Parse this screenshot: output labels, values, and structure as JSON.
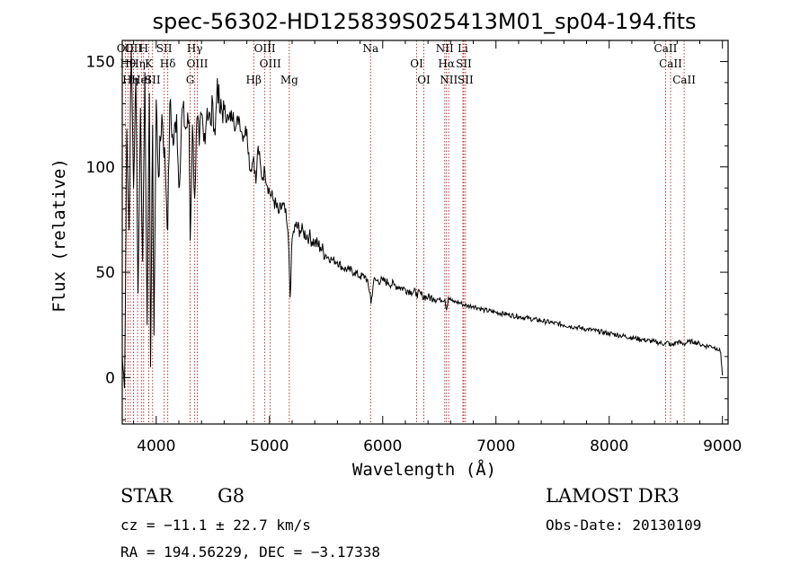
{
  "chart_data": {
    "type": "line",
    "title": "spec-56302-HD125839S025413M01_sp04-194.fits",
    "xlabel": "Wavelength (Å)",
    "ylabel": "Flux (relative)",
    "xlim": [
      3700,
      9050
    ],
    "ylim": [
      -22,
      160
    ],
    "xticks": [
      4000,
      5000,
      6000,
      7000,
      8000,
      9000
    ],
    "yticks": [
      0,
      50,
      100,
      150
    ],
    "series": [
      {
        "name": "flux",
        "x": [
          3700,
          3720,
          3740,
          3760,
          3780,
          3800,
          3820,
          3840,
          3860,
          3880,
          3900,
          3920,
          3940,
          3950,
          3968,
          3980,
          4000,
          4020,
          4050,
          4080,
          4102,
          4120,
          4150,
          4180,
          4200,
          4230,
          4260,
          4290,
          4300,
          4320,
          4340,
          4360,
          4380,
          4400,
          4420,
          4450,
          4480,
          4500,
          4520,
          4540,
          4560,
          4600,
          4640,
          4680,
          4700,
          4730,
          4760,
          4800,
          4830,
          4861,
          4880,
          4900,
          4930,
          4960,
          5000,
          5040,
          5080,
          5120,
          5150,
          5170,
          5183,
          5200,
          5230,
          5270,
          5300,
          5350,
          5400,
          5450,
          5500,
          5550,
          5600,
          5650,
          5700,
          5750,
          5800,
          5850,
          5890,
          5896,
          5920,
          5950,
          6000,
          6050,
          6100,
          6150,
          6200,
          6250,
          6300,
          6350,
          6400,
          6450,
          6500,
          6550,
          6563,
          6580,
          6620,
          6650,
          6700,
          6750,
          6800,
          6850,
          6900,
          7000,
          7100,
          7200,
          7300,
          7400,
          7500,
          7600,
          7700,
          7800,
          7900,
          8000,
          8100,
          8200,
          8300,
          8400,
          8498,
          8520,
          8542,
          8600,
          8662,
          8700,
          8750,
          8800,
          8850,
          8900,
          8950,
          8970,
          8985,
          9000
        ],
        "values": [
          10,
          -5,
          118,
          70,
          155,
          90,
          142,
          40,
          128,
          55,
          145,
          25,
          135,
          5,
          120,
          20,
          132,
          95,
          125,
          100,
          70,
          130,
          110,
          125,
          90,
          128,
          118,
          122,
          65,
          120,
          85,
          123,
          110,
          125,
          112,
          128,
          120,
          130,
          115,
          142,
          126,
          127,
          122,
          126,
          118,
          124,
          115,
          118,
          98,
          105,
          92,
          110,
          95,
          98,
          88,
          84,
          78,
          82,
          75,
          62,
          38,
          66,
          72,
          70,
          69,
          67,
          64,
          62,
          58,
          56,
          55,
          52,
          51,
          50,
          48,
          48,
          40,
          35,
          46,
          46,
          46,
          45,
          44,
          43,
          42,
          41,
          40,
          39,
          38,
          38,
          37,
          37,
          32,
          38,
          36,
          36,
          35,
          34,
          34,
          33,
          32,
          31,
          30,
          29,
          28,
          27,
          26,
          25,
          24,
          23,
          22,
          21,
          20,
          19,
          18,
          17,
          16,
          17,
          15,
          17,
          16,
          17,
          17,
          16,
          15,
          15,
          14,
          13,
          12,
          1
        ]
      }
    ],
    "lines": [
      {
        "wl": 3727,
        "label": "OII"
      },
      {
        "wl": 3750,
        "label": "Hθ"
      },
      {
        "wl": 3771,
        "label": "Hη"
      },
      {
        "wl": 3799,
        "label": "OII"
      },
      {
        "wl": 3835,
        "label": "Hη"
      },
      {
        "wl": 3869,
        "label": "HeI"
      },
      {
        "wl": 3889,
        "label": "H"
      },
      {
        "wl": 3934,
        "label": "K"
      },
      {
        "wl": 3968,
        "label": "SII"
      },
      {
        "wl": 4070,
        "label": "SII"
      },
      {
        "wl": 4102,
        "label": "Hδ"
      },
      {
        "wl": 4300,
        "label": "G"
      },
      {
        "wl": 4340,
        "label": "Hγ"
      },
      {
        "wl": 4363,
        "label": "OIII"
      },
      {
        "wl": 4861,
        "label": "Hβ"
      },
      {
        "wl": 4959,
        "label": "OIII"
      },
      {
        "wl": 5007,
        "label": "OIII"
      },
      {
        "wl": 5175,
        "label": "Mg"
      },
      {
        "wl": 5893,
        "label": "Na"
      },
      {
        "wl": 6300,
        "label": "OI"
      },
      {
        "wl": 6363,
        "label": "OI"
      },
      {
        "wl": 6548,
        "label": "NII"
      },
      {
        "wl": 6563,
        "label": "Hα"
      },
      {
        "wl": 6583,
        "label": "NII"
      },
      {
        "wl": 6708,
        "label": "Li"
      },
      {
        "wl": 6716,
        "label": "SII"
      },
      {
        "wl": 6731,
        "label": "SII"
      },
      {
        "wl": 8498,
        "label": "CaII"
      },
      {
        "wl": 8542,
        "label": "CaII"
      },
      {
        "wl": 8662,
        "label": "CaII"
      }
    ]
  },
  "info": {
    "class": "STAR",
    "subclass": "G8",
    "survey": "LAMOST DR3",
    "cz": "cz = −11.1 ± 22.7 km/s",
    "obs_date": "Obs-Date: 20130109",
    "coords": "RA = 194.56229, DEC =  −3.17338"
  }
}
